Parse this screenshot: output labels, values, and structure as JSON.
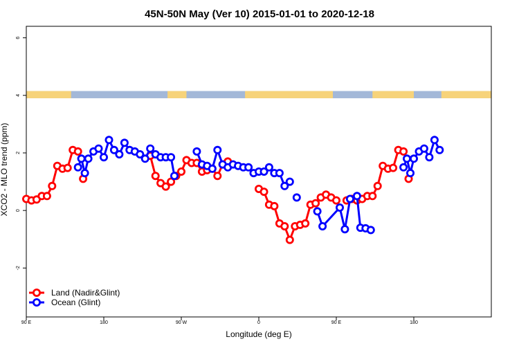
{
  "chart_data": {
    "type": "line",
    "title": "45N-50N May (Ver 10)   2015-01-01 to 2020-12-18",
    "xlabel": "Longitude (deg E)",
    "ylabel": "XCO2 - MLO trend (ppm)",
    "xlim": [
      -90,
      180
    ],
    "ylim": [
      -3.7,
      6.4
    ],
    "x_ticks": [
      {
        "value": -90,
        "label": "90 E"
      },
      {
        "value": -45,
        "label": "180"
      },
      {
        "value": 0,
        "label": "90 W"
      },
      {
        "value": 45,
        "label": "0"
      },
      {
        "value": 90,
        "label": "90 E"
      },
      {
        "value": 135,
        "label": "180"
      }
    ],
    "y_ticks": [
      {
        "value": -2,
        "label": "-2"
      },
      {
        "value": 0,
        "label": "0"
      },
      {
        "value": 2,
        "label": "2"
      },
      {
        "value": 4,
        "label": "4"
      },
      {
        "value": 6,
        "label": "6"
      }
    ],
    "land_mask_band": {
      "y_range": [
        3.9,
        4.15
      ],
      "land_color": "#f7d37a",
      "ocean_color": "#a3b8d8",
      "land_intervals": [
        [
          -90,
          -64
        ],
        [
          -8,
          3
        ],
        [
          37,
          88
        ],
        [
          111,
          135
        ],
        [
          151,
          180
        ]
      ]
    },
    "legend_position": "bottom-left",
    "series": [
      {
        "name": "Land (Nadir&Glint)",
        "color": "#ff0000",
        "segments": [
          [
            [
              -90,
              0.4
            ],
            [
              -87,
              0.35
            ],
            [
              -84,
              0.38
            ],
            [
              -81,
              0.5
            ],
            [
              -78,
              0.5
            ],
            [
              -75,
              0.85
            ],
            [
              -72,
              1.55
            ],
            [
              -69,
              1.45
            ],
            [
              -66,
              1.48
            ],
            [
              -63,
              2.1
            ],
            [
              -60,
              2.05
            ]
          ],
          [
            [
              -57,
              1.1
            ]
          ],
          [
            [
              -18,
              1.9
            ],
            [
              -15,
              1.2
            ],
            [
              -12,
              0.95
            ],
            [
              -9,
              0.83
            ],
            [
              -6,
              1.0
            ],
            [
              -3,
              1.2
            ],
            [
              0,
              1.35
            ],
            [
              3,
              1.75
            ],
            [
              6,
              1.65
            ],
            [
              9,
              1.65
            ],
            [
              12,
              1.35
            ],
            [
              15,
              1.4
            ],
            [
              18,
              1.45
            ],
            [
              21,
              1.2
            ],
            [
              24,
              1.6
            ],
            [
              27,
              1.7
            ]
          ],
          [
            [
              45,
              0.75
            ],
            [
              48,
              0.65
            ],
            [
              51,
              0.2
            ],
            [
              54,
              0.15
            ],
            [
              57,
              -0.45
            ],
            [
              60,
              -0.55
            ],
            [
              63,
              -1.02
            ],
            [
              66,
              -0.55
            ],
            [
              69,
              -0.5
            ],
            [
              72,
              -0.45
            ],
            [
              75,
              0.2
            ],
            [
              78,
              0.25
            ],
            [
              81,
              0.45
            ],
            [
              84,
              0.55
            ],
            [
              87,
              0.45
            ],
            [
              90,
              0.35
            ]
          ],
          [
            [
              96,
              0.35
            ],
            [
              99,
              0.4
            ],
            [
              102,
              0.35
            ],
            [
              105,
              0.4
            ],
            [
              108,
              0.5
            ],
            [
              111,
              0.5
            ],
            [
              114,
              0.85
            ],
            [
              117,
              1.55
            ],
            [
              120,
              1.45
            ],
            [
              123,
              1.48
            ],
            [
              126,
              2.1
            ],
            [
              129,
              2.05
            ]
          ],
          [
            [
              132,
              1.1
            ]
          ]
        ]
      },
      {
        "name": "Ocean (Glint)",
        "color": "#0000ff",
        "segments": [
          [
            [
              -60,
              1.5
            ],
            [
              -58,
              1.8
            ],
            [
              -56,
              1.3
            ],
            [
              -54,
              1.8
            ],
            [
              -51,
              2.05
            ],
            [
              -48,
              2.15
            ],
            [
              -45,
              1.85
            ],
            [
              -42,
              2.45
            ],
            [
              -39,
              2.1
            ],
            [
              -36,
              1.95
            ],
            [
              -33,
              2.35
            ],
            [
              -30,
              2.1
            ],
            [
              -27,
              2.05
            ],
            [
              -24,
              1.95
            ],
            [
              -21,
              1.8
            ],
            [
              -18,
              2.15
            ],
            [
              -15,
              1.95
            ],
            [
              -12,
              1.85
            ],
            [
              -9,
              1.85
            ],
            [
              -6,
              1.85
            ],
            [
              -4,
              1.2
            ]
          ],
          [
            [
              9,
              2.05
            ],
            [
              12,
              1.6
            ],
            [
              15,
              1.55
            ],
            [
              18,
              1.45
            ],
            [
              21,
              2.1
            ],
            [
              24,
              1.6
            ],
            [
              27,
              1.5
            ],
            [
              30,
              1.6
            ],
            [
              33,
              1.55
            ],
            [
              36,
              1.5
            ],
            [
              39,
              1.5
            ],
            [
              42,
              1.3
            ],
            [
              45,
              1.35
            ],
            [
              48,
              1.35
            ],
            [
              51,
              1.5
            ],
            [
              54,
              1.3
            ],
            [
              57,
              1.3
            ],
            [
              60,
              0.85
            ],
            [
              63,
              1.0
            ]
          ],
          [
            [
              67,
              0.45
            ]
          ],
          [
            [
              79,
              -0.03
            ],
            [
              82,
              -0.55
            ],
            [
              92,
              0.1
            ],
            [
              95,
              -0.65
            ],
            [
              98,
              0.4
            ],
            [
              102,
              0.5
            ],
            [
              104,
              -0.6
            ],
            [
              107,
              -0.62
            ],
            [
              110,
              -0.68
            ]
          ],
          [
            [
              129,
              1.5
            ],
            [
              131,
              1.8
            ],
            [
              133,
              1.3
            ],
            [
              135,
              1.8
            ],
            [
              138,
              2.05
            ],
            [
              141,
              2.15
            ],
            [
              144,
              1.85
            ],
            [
              147,
              2.45
            ],
            [
              150,
              2.1
            ]
          ]
        ]
      }
    ]
  }
}
